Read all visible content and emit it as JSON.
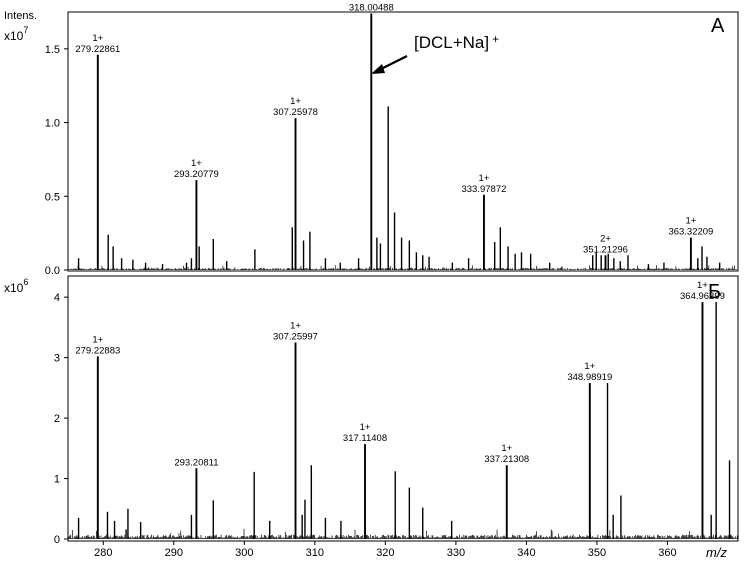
{
  "chart_data": {
    "type": "mass-spectrum",
    "x_axis": {
      "label": "m/z",
      "range": [
        275,
        370
      ],
      "ticks": [
        280,
        290,
        300,
        310,
        320,
        330,
        340,
        350,
        360
      ]
    },
    "panels": [
      {
        "letter": "A",
        "y_title": "Intens.",
        "y_multiplier": "x10",
        "y_exponent": "7",
        "ylim": [
          0,
          1.75
        ],
        "y_ticks": [
          "0.0",
          "0.5",
          "1.0",
          "1.5"
        ],
        "annotation": {
          "text": "[DCL+Na]",
          "superscript": "+",
          "target_mz": 318.00488
        },
        "peaks": [
          {
            "mz": 279.22861,
            "intensity": 1.46,
            "charge": "1+",
            "label": "279.22861"
          },
          {
            "mz": 293.20779,
            "intensity": 0.61,
            "charge": "1+",
            "label": "293.20779"
          },
          {
            "mz": 307.25978,
            "intensity": 1.03,
            "charge": "1+",
            "label": "307.25978"
          },
          {
            "mz": 318.00488,
            "intensity": 1.74,
            "charge": "1+",
            "label": "318.00488"
          },
          {
            "mz": 333.97872,
            "intensity": 0.51,
            "charge": "1+",
            "label": "333.97872"
          },
          {
            "mz": 351.21296,
            "intensity": 0.1,
            "charge": "2+",
            "label": "351.21296"
          },
          {
            "mz": 363.32209,
            "intensity": 0.22,
            "charge": "1+",
            "label": "363.32209"
          },
          {
            "mz": 276.5,
            "intensity": 0.08
          },
          {
            "mz": 280.7,
            "intensity": 0.24
          },
          {
            "mz": 281.4,
            "intensity": 0.16
          },
          {
            "mz": 282.6,
            "intensity": 0.08
          },
          {
            "mz": 284.2,
            "intensity": 0.07
          },
          {
            "mz": 286.0,
            "intensity": 0.05
          },
          {
            "mz": 288.4,
            "intensity": 0.04
          },
          {
            "mz": 291.8,
            "intensity": 0.05
          },
          {
            "mz": 292.5,
            "intensity": 0.08
          },
          {
            "mz": 293.6,
            "intensity": 0.16
          },
          {
            "mz": 295.6,
            "intensity": 0.21
          },
          {
            "mz": 297.5,
            "intensity": 0.06
          },
          {
            "mz": 301.5,
            "intensity": 0.14
          },
          {
            "mz": 306.8,
            "intensity": 0.29
          },
          {
            "mz": 308.4,
            "intensity": 0.2
          },
          {
            "mz": 309.3,
            "intensity": 0.26
          },
          {
            "mz": 311.5,
            "intensity": 0.08
          },
          {
            "mz": 313.6,
            "intensity": 0.05
          },
          {
            "mz": 316.2,
            "intensity": 0.08
          },
          {
            "mz": 318.8,
            "intensity": 0.22
          },
          {
            "mz": 319.3,
            "intensity": 0.18
          },
          {
            "mz": 320.4,
            "intensity": 1.11
          },
          {
            "mz": 321.3,
            "intensity": 0.39
          },
          {
            "mz": 322.3,
            "intensity": 0.22
          },
          {
            "mz": 323.4,
            "intensity": 0.2
          },
          {
            "mz": 324.4,
            "intensity": 0.12
          },
          {
            "mz": 325.3,
            "intensity": 0.1
          },
          {
            "mz": 326.2,
            "intensity": 0.09
          },
          {
            "mz": 329.5,
            "intensity": 0.05
          },
          {
            "mz": 331.8,
            "intensity": 0.08
          },
          {
            "mz": 335.5,
            "intensity": 0.19
          },
          {
            "mz": 336.3,
            "intensity": 0.29
          },
          {
            "mz": 337.4,
            "intensity": 0.16
          },
          {
            "mz": 338.4,
            "intensity": 0.11
          },
          {
            "mz": 339.3,
            "intensity": 0.12
          },
          {
            "mz": 340.6,
            "intensity": 0.11
          },
          {
            "mz": 343.3,
            "intensity": 0.05
          },
          {
            "mz": 349.4,
            "intensity": 0.1
          },
          {
            "mz": 349.9,
            "intensity": 0.12
          },
          {
            "mz": 350.6,
            "intensity": 0.1
          },
          {
            "mz": 351.6,
            "intensity": 0.11
          },
          {
            "mz": 352.4,
            "intensity": 0.08
          },
          {
            "mz": 353.3,
            "intensity": 0.06
          },
          {
            "mz": 354.4,
            "intensity": 0.1
          },
          {
            "mz": 357.3,
            "intensity": 0.04
          },
          {
            "mz": 359.5,
            "intensity": 0.05
          },
          {
            "mz": 364.3,
            "intensity": 0.08
          },
          {
            "mz": 364.9,
            "intensity": 0.16
          },
          {
            "mz": 365.6,
            "intensity": 0.09
          },
          {
            "mz": 367.4,
            "intensity": 0.05
          }
        ]
      },
      {
        "letter": "Б",
        "y_multiplier": "x10",
        "y_exponent": "6",
        "ylim": [
          0,
          4.35
        ],
        "y_ticks": [
          "0",
          "1",
          "2",
          "3",
          "4"
        ],
        "peaks": [
          {
            "mz": 279.22883,
            "intensity": 3.02,
            "charge": "1+",
            "label": "279.22883"
          },
          {
            "mz": 293.20811,
            "intensity": 1.17,
            "label": "293.20811"
          },
          {
            "mz": 307.25997,
            "intensity": 3.25,
            "charge": "1+",
            "label": "307.25997"
          },
          {
            "mz": 317.11408,
            "intensity": 1.57,
            "charge": "1+",
            "label": "317.11408"
          },
          {
            "mz": 337.21308,
            "intensity": 1.22,
            "charge": "1+",
            "label": "337.21308"
          },
          {
            "mz": 348.98919,
            "intensity": 2.58,
            "charge": "1+",
            "label": "348.98919"
          },
          {
            "mz": 364.96299,
            "intensity": 3.92,
            "charge": "1+",
            "label": "364.96299"
          },
          {
            "mz": 276.5,
            "intensity": 0.35
          },
          {
            "mz": 280.6,
            "intensity": 0.45
          },
          {
            "mz": 281.6,
            "intensity": 0.3
          },
          {
            "mz": 283.5,
            "intensity": 0.5
          },
          {
            "mz": 285.3,
            "intensity": 0.28
          },
          {
            "mz": 292.5,
            "intensity": 0.4
          },
          {
            "mz": 295.6,
            "intensity": 0.64
          },
          {
            "mz": 301.4,
            "intensity": 1.11
          },
          {
            "mz": 303.6,
            "intensity": 0.3
          },
          {
            "mz": 308.2,
            "intensity": 0.4
          },
          {
            "mz": 308.6,
            "intensity": 0.65
          },
          {
            "mz": 309.5,
            "intensity": 1.22
          },
          {
            "mz": 311.5,
            "intensity": 0.35
          },
          {
            "mz": 313.7,
            "intensity": 0.3
          },
          {
            "mz": 321.4,
            "intensity": 1.12
          },
          {
            "mz": 323.4,
            "intensity": 0.85
          },
          {
            "mz": 325.3,
            "intensity": 0.52
          },
          {
            "mz": 329.4,
            "intensity": 0.3
          },
          {
            "mz": 351.5,
            "intensity": 2.58
          },
          {
            "mz": 352.3,
            "intensity": 0.4
          },
          {
            "mz": 353.4,
            "intensity": 0.72
          },
          {
            "mz": 366.9,
            "intensity": 3.92
          },
          {
            "mz": 368.8,
            "intensity": 1.3
          },
          {
            "mz": 366.2,
            "intensity": 0.4
          }
        ]
      }
    ]
  }
}
